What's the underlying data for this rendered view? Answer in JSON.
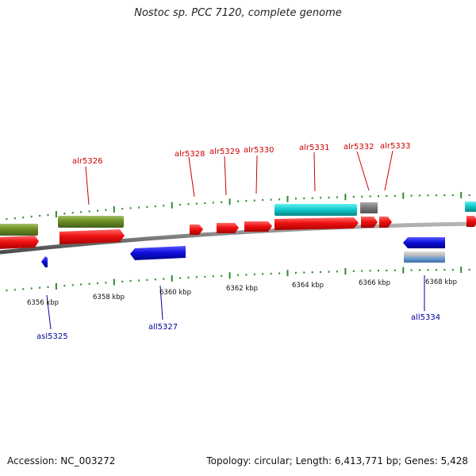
{
  "title": "Nostoc sp. PCC 7120, complete genome",
  "footer": {
    "accession": "Accession: NC_003272",
    "summary": "Topology: circular; Length: 6,413,771 bp; Genes: 5,428"
  },
  "colors": {
    "forward_label": "#cc0000",
    "reverse_label": "#000099",
    "backbone": "#8a8a8a",
    "tick": "#2e8b2e",
    "red": "#ee1111",
    "blue": "#1111dd",
    "cyan": "#11cccc",
    "olive": "#6b8e23",
    "gray": "#777777",
    "steel": "#5a8fc0"
  },
  "axis_labels": [
    "6356 kbp",
    "6358 kbp",
    "6360 kbp",
    "6362 kbp",
    "6364 kbp",
    "6366 kbp",
    "6368 kbp"
  ],
  "forward_gene_labels": [
    "alr5326",
    "alr5328",
    "alr5329",
    "alr5330",
    "alr5331",
    "alr5332",
    "alr5333"
  ],
  "reverse_gene_labels": [
    "asl5325",
    "all5327",
    "all5334"
  ]
}
